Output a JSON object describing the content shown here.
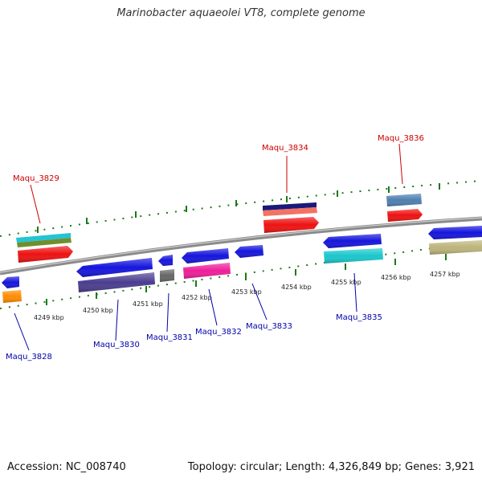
{
  "title": "Marinobacter aquaeolei VT8, complete genome",
  "footer": {
    "accession": "Accession: NC_008740",
    "topology": "Topology: circular; Length: 4,326,849 bp; Genes: 3,921"
  },
  "ruler": [
    "4249 kbp",
    "4250 kbp",
    "4251 kbp",
    "4252 kbp",
    "4253 kbp",
    "4254 kbp",
    "4255 kbp",
    "4256 kbp",
    "4257 kbp"
  ],
  "genes": {
    "forward": [
      "Maqu_3829",
      "Maqu_3834",
      "Maqu_3836"
    ],
    "reverse": [
      "Maqu_3828",
      "Maqu_3830",
      "Maqu_3831",
      "Maqu_3832",
      "Maqu_3833",
      "Maqu_3835"
    ]
  },
  "colors": {
    "forward_label": "#cc0000",
    "reverse_label": "#0000aa",
    "tick": "#1a7a1a",
    "backbone": "#888888"
  }
}
